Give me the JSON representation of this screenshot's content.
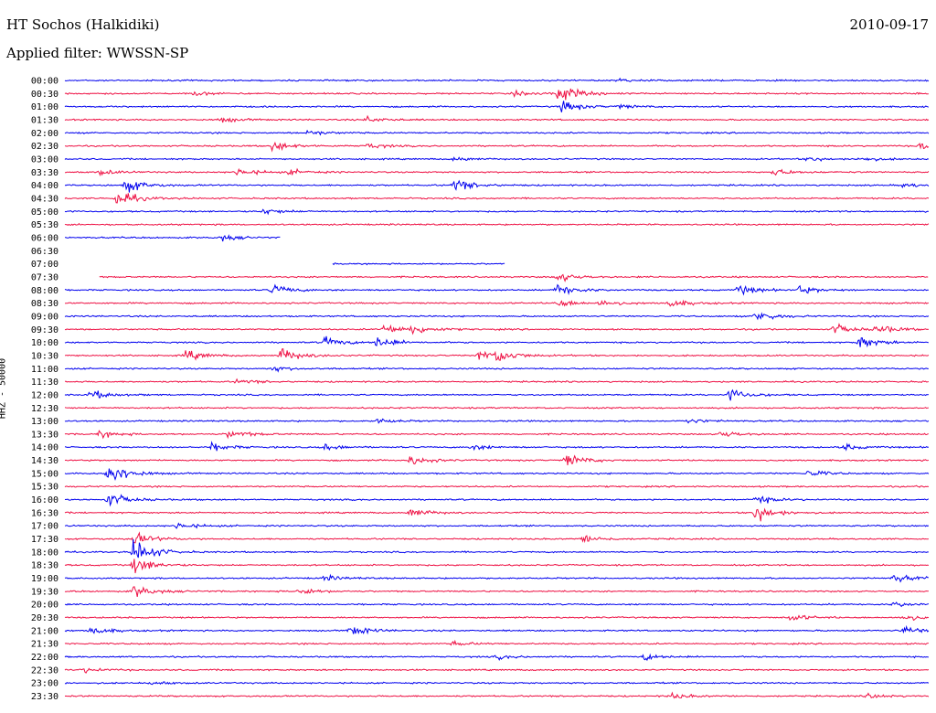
{
  "header": {
    "station": "HT Sochos (Halkidiki)",
    "date": "2010-09-17",
    "filter": "Applied filter: WWSSN-SP"
  },
  "chart_data": {
    "type": "line",
    "title": "HT Sochos (Halkidiki)",
    "ylabel": "HHZ - 50000",
    "xlabel": "",
    "colors": [
      "#0000ee",
      "#ee1144"
    ],
    "rows": [
      {
        "label": "00:00",
        "start": 0.0,
        "end": 1.0,
        "events": [
          [
            0.64,
            0.3
          ]
        ]
      },
      {
        "label": "00:30",
        "start": 0.0,
        "end": 1.0,
        "events": [
          [
            0.15,
            0.4
          ],
          [
            0.52,
            0.4
          ],
          [
            0.572,
            2.0
          ]
        ]
      },
      {
        "label": "01:00",
        "start": 0.0,
        "end": 1.0,
        "events": [
          [
            0.575,
            1.2
          ],
          [
            0.64,
            0.4
          ]
        ]
      },
      {
        "label": "01:30",
        "start": 0.0,
        "end": 1.0,
        "events": [
          [
            0.18,
            0.5
          ],
          [
            0.35,
            0.6
          ]
        ]
      },
      {
        "label": "02:00",
        "start": 0.0,
        "end": 1.0,
        "events": [
          [
            0.28,
            0.5
          ]
        ]
      },
      {
        "label": "02:30",
        "start": 0.0,
        "end": 1.0,
        "events": [
          [
            0.24,
            1.0
          ],
          [
            0.35,
            0.5
          ],
          [
            0.99,
            0.9
          ]
        ]
      },
      {
        "label": "03:00",
        "start": 0.0,
        "end": 1.0,
        "events": [
          [
            0.45,
            0.4
          ],
          [
            0.86,
            0.4
          ],
          [
            0.92,
            0.4
          ]
        ]
      },
      {
        "label": "03:30",
        "start": 0.0,
        "end": 1.0,
        "events": [
          [
            0.04,
            0.5
          ],
          [
            0.2,
            0.8
          ],
          [
            0.26,
            0.5
          ],
          [
            0.82,
            0.7
          ]
        ]
      },
      {
        "label": "04:00",
        "start": 0.0,
        "end": 1.0,
        "events": [
          [
            0.07,
            1.5
          ],
          [
            0.45,
            1.3
          ],
          [
            0.97,
            0.5
          ]
        ]
      },
      {
        "label": "04:30",
        "start": 0.0,
        "end": 1.0,
        "events": [
          [
            0.06,
            1.6
          ]
        ]
      },
      {
        "label": "05:00",
        "start": 0.0,
        "end": 1.0,
        "events": [
          [
            0.23,
            0.6
          ]
        ]
      },
      {
        "label": "05:30",
        "start": 0.0,
        "end": 1.0,
        "events": []
      },
      {
        "label": "06:00",
        "start": 0.0,
        "end": 0.25,
        "events": [
          [
            0.18,
            0.6
          ]
        ]
      },
      {
        "label": "06:30",
        "start": 0.0,
        "end": 0.0,
        "events": []
      },
      {
        "label": "07:00",
        "start": 0.31,
        "end": 0.51,
        "events": []
      },
      {
        "label": "07:30",
        "start": 0.04,
        "end": 1.0,
        "events": [
          [
            0.57,
            1.0
          ]
        ]
      },
      {
        "label": "08:00",
        "start": 0.0,
        "end": 1.0,
        "events": [
          [
            0.24,
            1.0
          ],
          [
            0.57,
            1.2
          ],
          [
            0.78,
            1.0
          ],
          [
            0.85,
            0.8
          ]
        ]
      },
      {
        "label": "08:30",
        "start": 0.0,
        "end": 1.0,
        "events": [
          [
            0.57,
            0.8
          ],
          [
            0.62,
            0.6
          ],
          [
            0.7,
            0.8
          ]
        ]
      },
      {
        "label": "09:00",
        "start": 0.0,
        "end": 1.0,
        "events": [
          [
            0.8,
            1.2
          ]
        ]
      },
      {
        "label": "09:30",
        "start": 0.0,
        "end": 1.0,
        "events": [
          [
            0.37,
            1.0
          ],
          [
            0.4,
            1.0
          ],
          [
            0.89,
            1.0
          ],
          [
            0.94,
            0.9
          ]
        ]
      },
      {
        "label": "10:00",
        "start": 0.0,
        "end": 1.0,
        "events": [
          [
            0.3,
            1.0
          ],
          [
            0.36,
            1.2
          ],
          [
            0.92,
            1.3
          ]
        ]
      },
      {
        "label": "10:30",
        "start": 0.0,
        "end": 1.0,
        "events": [
          [
            0.14,
            1.0
          ],
          [
            0.25,
            1.5
          ],
          [
            0.48,
            1.1
          ],
          [
            0.5,
            1.2
          ]
        ]
      },
      {
        "label": "11:00",
        "start": 0.0,
        "end": 1.0,
        "events": [
          [
            0.24,
            0.5
          ]
        ]
      },
      {
        "label": "11:30",
        "start": 0.0,
        "end": 1.0,
        "events": [
          [
            0.2,
            0.5
          ]
        ]
      },
      {
        "label": "12:00",
        "start": 0.0,
        "end": 1.0,
        "events": [
          [
            0.03,
            0.9
          ],
          [
            0.77,
            1.2
          ]
        ]
      },
      {
        "label": "12:30",
        "start": 0.0,
        "end": 1.0,
        "events": []
      },
      {
        "label": "13:00",
        "start": 0.0,
        "end": 1.0,
        "events": [
          [
            0.36,
            0.5
          ],
          [
            0.72,
            0.5
          ]
        ]
      },
      {
        "label": "13:30",
        "start": 0.0,
        "end": 1.0,
        "events": [
          [
            0.04,
            0.7
          ],
          [
            0.19,
            0.9
          ],
          [
            0.76,
            0.7
          ]
        ]
      },
      {
        "label": "14:00",
        "start": 0.0,
        "end": 1.0,
        "events": [
          [
            0.17,
            0.8
          ],
          [
            0.3,
            0.6
          ],
          [
            0.47,
            0.6
          ],
          [
            0.9,
            0.6
          ]
        ]
      },
      {
        "label": "14:30",
        "start": 0.0,
        "end": 1.0,
        "events": [
          [
            0.4,
            0.9
          ],
          [
            0.58,
            1.3
          ]
        ]
      },
      {
        "label": "15:00",
        "start": 0.0,
        "end": 1.0,
        "events": [
          [
            0.05,
            2.6
          ],
          [
            0.86,
            0.7
          ]
        ]
      },
      {
        "label": "15:30",
        "start": 0.0,
        "end": 1.0,
        "events": []
      },
      {
        "label": "16:00",
        "start": 0.0,
        "end": 1.0,
        "events": [
          [
            0.05,
            1.4
          ],
          [
            0.8,
            0.8
          ]
        ]
      },
      {
        "label": "16:30",
        "start": 0.0,
        "end": 1.0,
        "events": [
          [
            0.4,
            0.9
          ],
          [
            0.8,
            1.8
          ]
        ]
      },
      {
        "label": "17:00",
        "start": 0.0,
        "end": 1.0,
        "events": [
          [
            0.13,
            0.7
          ]
        ]
      },
      {
        "label": "17:30",
        "start": 0.0,
        "end": 1.0,
        "events": [
          [
            0.08,
            1.3
          ],
          [
            0.6,
            0.8
          ]
        ]
      },
      {
        "label": "18:00",
        "start": 0.0,
        "end": 1.0,
        "events": [
          [
            0.08,
            2.8
          ]
        ]
      },
      {
        "label": "18:30",
        "start": 0.0,
        "end": 1.0,
        "events": [
          [
            0.08,
            1.8
          ]
        ]
      },
      {
        "label": "19:00",
        "start": 0.0,
        "end": 1.0,
        "events": [
          [
            0.3,
            0.5
          ],
          [
            0.96,
            0.8
          ]
        ]
      },
      {
        "label": "19:30",
        "start": 0.0,
        "end": 1.0,
        "events": [
          [
            0.08,
            1.2
          ],
          [
            0.27,
            0.7
          ]
        ]
      },
      {
        "label": "20:00",
        "start": 0.0,
        "end": 1.0,
        "events": [
          [
            0.96,
            0.5
          ]
        ]
      },
      {
        "label": "20:30",
        "start": 0.0,
        "end": 1.0,
        "events": [
          [
            0.84,
            0.7
          ],
          [
            0.97,
            0.7
          ]
        ]
      },
      {
        "label": "21:00",
        "start": 0.0,
        "end": 1.0,
        "events": [
          [
            0.03,
            0.8
          ],
          [
            0.33,
            1.1
          ],
          [
            0.97,
            0.8
          ]
        ]
      },
      {
        "label": "21:30",
        "start": 0.0,
        "end": 1.0,
        "events": [
          [
            0.45,
            0.4
          ]
        ]
      },
      {
        "label": "22:00",
        "start": 0.0,
        "end": 1.0,
        "events": [
          [
            0.5,
            0.4
          ],
          [
            0.67,
            0.6
          ]
        ]
      },
      {
        "label": "22:30",
        "start": 0.0,
        "end": 1.0,
        "events": [
          [
            0.02,
            0.5
          ]
        ]
      },
      {
        "label": "23:00",
        "start": 0.0,
        "end": 1.0,
        "events": [
          [
            0.1,
            0.3
          ]
        ]
      },
      {
        "label": "23:30",
        "start": 0.0,
        "end": 1.0,
        "events": [
          [
            0.7,
            0.6
          ],
          [
            0.93,
            0.5
          ]
        ]
      }
    ]
  }
}
